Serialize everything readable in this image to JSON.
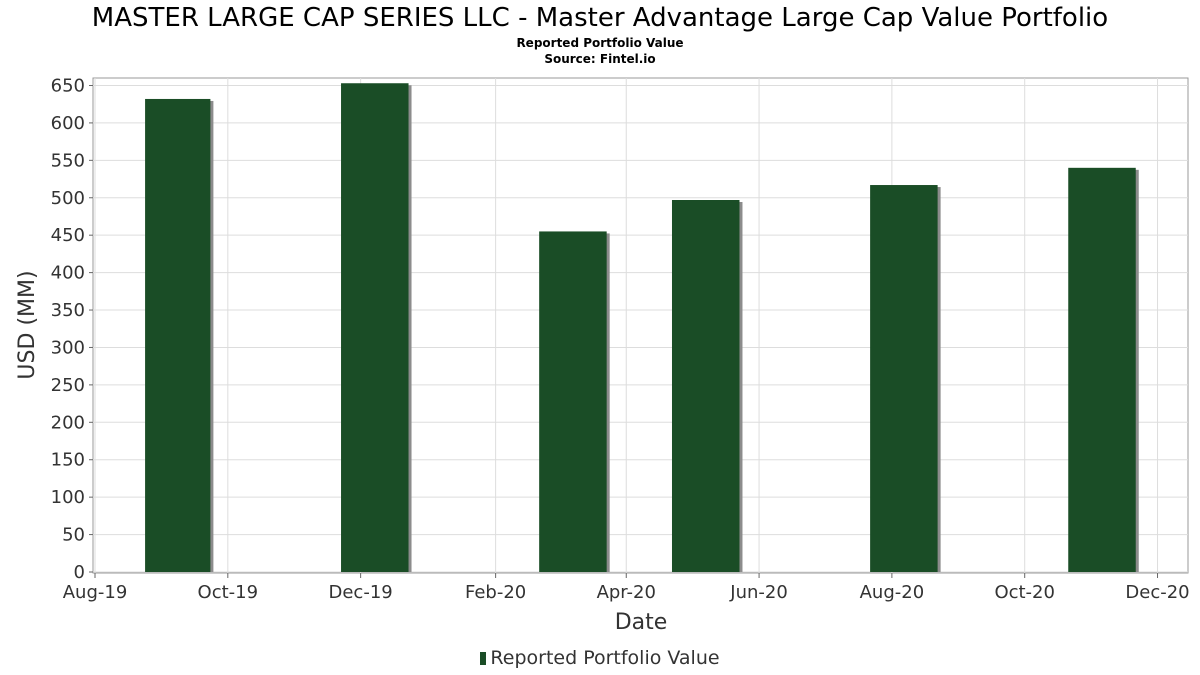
{
  "title": "MASTER LARGE CAP SERIES LLC - Master Advantage Large Cap Value Portfolio",
  "subtitle_1": "Reported Portfolio Value",
  "subtitle_2": "Source: Fintel.io",
  "legend_label": "Reported Portfolio Value",
  "colors": {
    "bar": "#1a4d26",
    "bar_shadow": "#8c8c8c",
    "grid": "#dddddd",
    "plot_border": "#999999"
  },
  "chart_data": {
    "type": "bar",
    "xlabel": "Date",
    "ylabel": "USD (MM)",
    "ylim": [
      0,
      660
    ],
    "yticks": [
      0,
      50,
      100,
      150,
      200,
      250,
      300,
      350,
      400,
      450,
      500,
      550,
      600,
      650
    ],
    "xlim": [
      "2019-08-01",
      "2020-12-15"
    ],
    "xticks": [
      {
        "date": "2019-08-01",
        "label": "Aug-19"
      },
      {
        "date": "2019-10-01",
        "label": "Oct-19"
      },
      {
        "date": "2019-12-01",
        "label": "Dec-19"
      },
      {
        "date": "2020-02-01",
        "label": "Feb-20"
      },
      {
        "date": "2020-04-01",
        "label": "Apr-20"
      },
      {
        "date": "2020-06-01",
        "label": "Jun-20"
      },
      {
        "date": "2020-08-01",
        "label": "Aug-20"
      },
      {
        "date": "2020-10-01",
        "label": "Oct-20"
      },
      {
        "date": "2020-12-01",
        "label": "Dec-20"
      }
    ],
    "grid": true,
    "legend_position": "bottom",
    "series": [
      {
        "name": "Reported Portfolio Value",
        "bars": [
          {
            "start": "2019-08-24",
            "end": "2019-09-23",
            "value": 632
          },
          {
            "start": "2019-11-22",
            "end": "2019-12-23",
            "value": 653
          },
          {
            "start": "2020-02-21",
            "end": "2020-03-23",
            "value": 455
          },
          {
            "start": "2020-04-22",
            "end": "2020-05-23",
            "value": 497
          },
          {
            "start": "2020-07-22",
            "end": "2020-08-22",
            "value": 517
          },
          {
            "start": "2020-10-21",
            "end": "2020-11-21",
            "value": 540
          }
        ]
      }
    ]
  }
}
